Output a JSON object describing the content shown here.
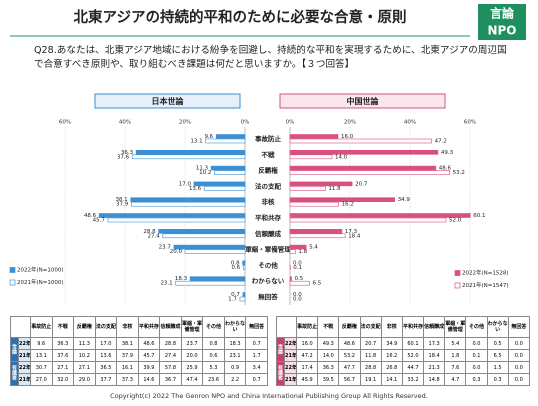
{
  "title": "北東アジアの持続的平和のために必要な合意・原則",
  "logo": {
    "top": "言論",
    "bottom": "NPO"
  },
  "question": "Q28.あなたは、北東アジア地域における紛争を回避し、持続的な平和を実現するために、北東アジアの周辺国で合意すべき原則や、取り組むべき課題は何だと思いますか。【３つ回答】",
  "chart_data": [
    {
      "type": "bar",
      "orientation": "horizontal",
      "title": "日本世論",
      "categories": [
        "事故防止",
        "不戦",
        "反覇権",
        "法の支配",
        "非核",
        "平和共存",
        "信頼醸成",
        "軍縮・軍備管理",
        "その他",
        "わからない",
        "無回答"
      ],
      "series": [
        {
          "name": "2022年(N=1000)",
          "color": "#3b8fd4",
          "values": [
            9.6,
            36.3,
            11.3,
            17.0,
            38.1,
            48.6,
            28.8,
            23.7,
            0.8,
            18.3,
            0.7
          ],
          "value_labels": [
            "9.6",
            "36.3",
            "11.3",
            "17.0",
            "38.1",
            "48.6",
            "28.8",
            "23.7",
            "0.8",
            "18.3",
            "0.7"
          ]
        },
        {
          "name": "2021年(N=1000)",
          "color": "#3b8fd4",
          "fill": "#ffffff",
          "values": [
            13.1,
            37.6,
            10.2,
            13.6,
            37.9,
            45.7,
            27.4,
            20.0,
            0.6,
            23.1,
            1.7
          ],
          "value_labels": [
            "13.1",
            "37.6",
            "10.2",
            "13.6",
            "37.9",
            "45.7",
            "27.4",
            "20.0",
            "0.6",
            "23.1",
            "1.7"
          ]
        }
      ],
      "xlim": [
        60,
        0
      ],
      "xticks": [
        {
          "value": 60,
          "label": "60%"
        },
        {
          "value": 40,
          "label": "40%"
        },
        {
          "value": 20,
          "label": "20%"
        },
        {
          "value": 0,
          "label": "0%"
        }
      ],
      "grid": true,
      "legend": "bottom-left"
    },
    {
      "type": "bar",
      "orientation": "horizontal",
      "title": "中国世論",
      "series": [
        {
          "name": "2022年(N=1528)",
          "color": "#d9507c",
          "values": [
            16.0,
            49.3,
            48.6,
            20.7,
            34.9,
            60.1,
            17.3,
            5.4,
            0.0,
            0.5,
            0.0
          ],
          "value_labels": [
            "16.0",
            "49.3",
            "48.6",
            "20.7",
            "34.9",
            "60.1",
            "17.3",
            "5.4",
            "0.0",
            "0.5",
            "0.0"
          ]
        },
        {
          "name": "2021年(N=1547)",
          "color": "#d9507c",
          "fill": "#ffffff",
          "values": [
            47.2,
            14.0,
            53.2,
            11.8,
            16.2,
            52.0,
            18.4,
            1.8,
            0.1,
            6.5,
            0.0
          ],
          "value_labels": [
            "47.2",
            "14.0",
            "53.2",
            "11.8",
            "16.2",
            "52.0",
            "18.4",
            "1.8",
            "0.1",
            "6.5",
            "0.0"
          ]
        }
      ],
      "xlim": [
        0,
        60
      ],
      "xticks": [
        {
          "value": 0,
          "label": "0%"
        },
        {
          "value": 20,
          "label": "20%"
        },
        {
          "value": 40,
          "label": "40%"
        },
        {
          "value": 60,
          "label": "60%"
        }
      ],
      "grid": true,
      "legend": "bottom-right"
    }
  ],
  "tables": [
    {
      "color": "#2f6fb3",
      "light": "#dbe9f7",
      "columns": [
        "事故防止",
        "不戦",
        "反覇権",
        "法の支配",
        "非核",
        "平和共存",
        "信頼醸成",
        "軍縮・軍備管理",
        "その他",
        "わからない",
        "無回答"
      ],
      "groups": [
        {
          "label": "世論",
          "rows": [
            {
              "year": "22年",
              "cells": [
                "9.6",
                "36.3",
                "11.3",
                "17.0",
                "38.1",
                "48.6",
                "28.8",
                "23.7",
                "0.8",
                "18.3",
                "0.7"
              ]
            },
            {
              "year": "21年",
              "cells": [
                "13.1",
                "37.6",
                "10.2",
                "13.6",
                "37.9",
                "45.7",
                "27.4",
                "20.0",
                "0.6",
                "23.1",
                "1.7"
              ]
            }
          ]
        },
        {
          "label": "有識者",
          "rows": [
            {
              "year": "22年",
              "cells": [
                "30.7",
                "27.1",
                "27.1",
                "36.5",
                "16.1",
                "39.9",
                "57.8",
                "25.9",
                "5.3",
                "0.9",
                "3.4"
              ]
            },
            {
              "year": "21年",
              "cells": [
                "27.0",
                "32.0",
                "29.0",
                "37.7",
                "37.3",
                "14.6",
                "36.7",
                "47.4",
                "23.6",
                "2.2",
                "0.7"
              ]
            }
          ]
        }
      ]
    },
    {
      "color": "#c8406c",
      "light": "#f7dde6",
      "columns": [
        "事故防止",
        "不戦",
        "反覇権",
        "法の支配",
        "非核",
        "平和共存",
        "信頼醸成",
        "軍縮・軍備管理",
        "その他",
        "わからない",
        "無回答"
      ],
      "groups": [
        {
          "label": "世論",
          "rows": [
            {
              "year": "22年",
              "cells": [
                "16.0",
                "49.3",
                "48.6",
                "20.7",
                "34.9",
                "60.1",
                "17.3",
                "5.4",
                "0.0",
                "0.5",
                "0.0"
              ]
            },
            {
              "year": "21年",
              "cells": [
                "47.2",
                "14.0",
                "53.2",
                "11.8",
                "16.2",
                "52.0",
                "18.4",
                "1.8",
                "0.1",
                "6.5",
                "0.0"
              ]
            }
          ]
        },
        {
          "label": "有識者",
          "rows": [
            {
              "year": "22年",
              "cells": [
                "17.4",
                "36.3",
                "47.7",
                "28.8",
                "26.8",
                "44.7",
                "21.3",
                "7.6",
                "0.0",
                "1.5",
                "0.0"
              ]
            },
            {
              "year": "21年",
              "cells": [
                "45.9",
                "39.5",
                "56.7",
                "19.1",
                "14.1",
                "33.2",
                "14.8",
                "4.7",
                "0.3",
                "0.3",
                "0.0"
              ]
            }
          ]
        }
      ]
    }
  ],
  "copyright": "Copyright(c) 2022 The Genron NPO and China International Publishing Group All Rights Reserved."
}
